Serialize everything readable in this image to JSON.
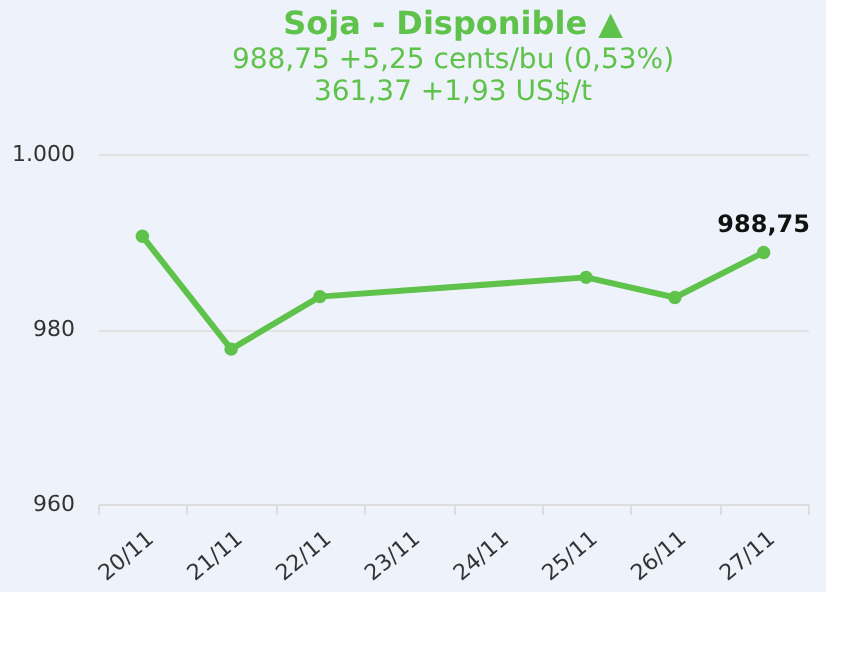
{
  "chart_data": {
    "type": "line",
    "title": "Soja - Disponible ▲",
    "subtitle": "988,75 +5,25 cents/bu (0,53%)",
    "annotations": [
      "361,37 +1,93 US$/t"
    ],
    "categories": [
      "20/11",
      "21/11",
      "22/11",
      "23/11",
      "24/11",
      "25/11",
      "26/11",
      "27/11"
    ],
    "series": [
      {
        "color": "#5fc24a",
        "values": [
          990.6,
          977.7,
          983.7,
          null,
          null,
          985.9,
          983.6,
          988.75
        ],
        "value_labels": [
          null,
          null,
          null,
          null,
          null,
          null,
          null,
          "988,75"
        ]
      }
    ],
    "ylim": [
      960,
      1000
    ],
    "yticks": [
      960,
      980,
      {
        "value": 1000,
        "label": "1.000"
      }
    ],
    "grid": "y",
    "marker": "circle",
    "line_style": "solid"
  }
}
